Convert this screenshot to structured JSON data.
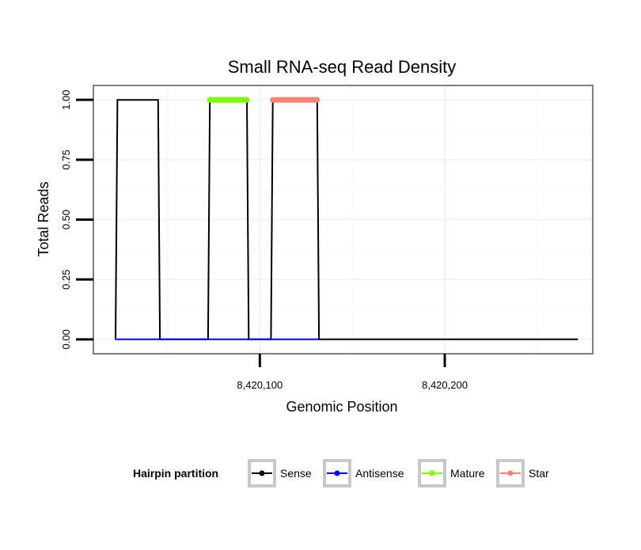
{
  "chart_data": {
    "type": "line",
    "title": "Small RNA-seq Read Density",
    "xlabel": "Genomic Position",
    "ylabel": "Total Reads",
    "xlim": [
      8420010,
      8420280
    ],
    "ylim": [
      -0.06,
      1.06
    ],
    "xticks": [
      8420100,
      8420200
    ],
    "xtick_labels": [
      "8,420,100",
      "8,420,200"
    ],
    "yticks": [
      0.0,
      0.25,
      0.5,
      0.75,
      1.0
    ],
    "ytick_labels": [
      "0.00",
      "0.25",
      "0.50",
      "0.75",
      "1.00"
    ],
    "grid": true,
    "legend": {
      "title": "Hairpin partition",
      "placement": "bottom",
      "entries": [
        {
          "name": "Sense",
          "color": "#000000"
        },
        {
          "name": "Antisense",
          "color": "#0000ff"
        },
        {
          "name": "Mature",
          "color": "#7cfc00"
        },
        {
          "name": "Star",
          "color": "#fa8072"
        }
      ]
    },
    "series": [
      {
        "name": "Sense",
        "color": "#000000",
        "x": [
          8420022,
          8420023,
          8420045,
          8420046,
          8420072,
          8420073,
          8420093,
          8420094,
          8420106,
          8420107,
          8420131,
          8420132,
          8420272
        ],
        "values": [
          0,
          1,
          1,
          0,
          0,
          1,
          1,
          0,
          0,
          1,
          1,
          0,
          0
        ]
      },
      {
        "name": "Antisense",
        "color": "#0000ff",
        "x": [
          8420022,
          8420132
        ],
        "values": [
          0,
          0
        ]
      },
      {
        "name": "Mature",
        "color": "#7cfc00",
        "x": [
          8420073,
          8420093
        ],
        "values": [
          1,
          1
        ]
      },
      {
        "name": "Star",
        "color": "#fa8072",
        "x": [
          8420107,
          8420131
        ],
        "values": [
          1,
          1
        ]
      }
    ]
  }
}
